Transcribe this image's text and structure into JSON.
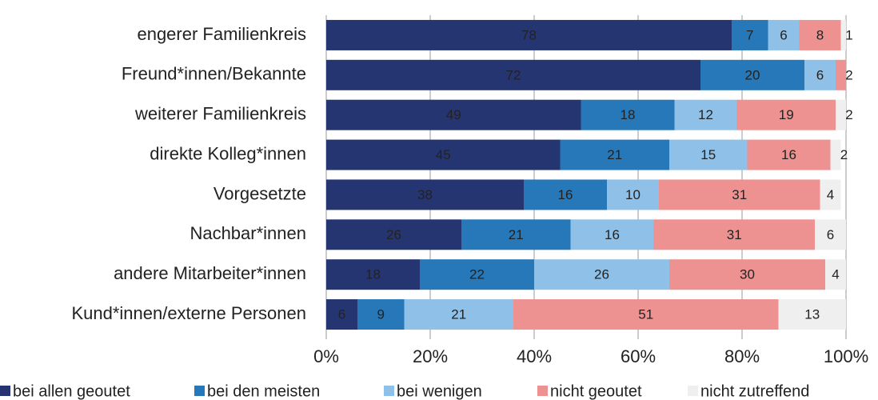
{
  "chart_data": {
    "type": "stacked-bar-horizontal",
    "categories": [
      "engerer Familienkreis",
      "Freund*innen/Bekannte",
      "weiterer Familienkreis",
      "direkte Kolleg*innen",
      "Vorgesetzte",
      "Nachbar*innen",
      "andere Mitarbeiter*innen",
      "Kund*innen/externe Personen"
    ],
    "series": [
      {
        "name": "bei allen geoutet",
        "color": "#253571",
        "values": [
          78,
          72,
          49,
          45,
          38,
          26,
          18,
          6
        ]
      },
      {
        "name": "bei den meisten",
        "color": "#2778b8",
        "values": [
          7,
          20,
          18,
          21,
          16,
          21,
          22,
          9
        ]
      },
      {
        "name": "bei wenigen",
        "color": "#8fc1e8",
        "values": [
          6,
          6,
          12,
          15,
          10,
          16,
          26,
          21
        ]
      },
      {
        "name": "nicht geoutet",
        "color": "#ee9191",
        "values": [
          8,
          2,
          19,
          16,
          31,
          31,
          30,
          51
        ]
      },
      {
        "name": "nicht zutreffend",
        "color": "#efefef",
        "values": [
          1,
          null,
          2,
          2,
          4,
          6,
          4,
          13
        ]
      }
    ],
    "xlim": [
      0,
      100
    ],
    "xticks": [
      {
        "value": 0,
        "label": "0%"
      },
      {
        "value": 20,
        "label": "20%"
      },
      {
        "value": 40,
        "label": "40%"
      },
      {
        "value": 60,
        "label": "60%"
      },
      {
        "value": 80,
        "label": "80%"
      },
      {
        "value": 100,
        "label": "100%"
      }
    ],
    "grid": true,
    "legend": "bottom"
  }
}
